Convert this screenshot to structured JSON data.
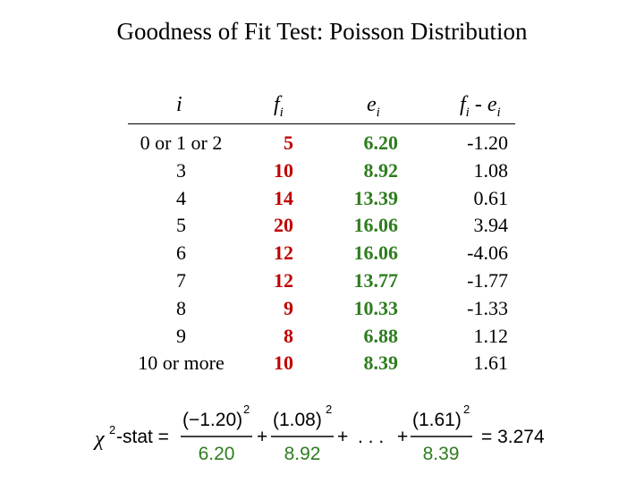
{
  "title": "Goodness of Fit Test:  Poisson Distribution",
  "headers": {
    "i": "i",
    "f": "f",
    "f_sub": "i",
    "e": "e",
    "e_sub": "i",
    "diff_f": "f",
    "diff_f_sub": "i",
    "diff_mid": " - e",
    "diff_e_sub": "i"
  },
  "rows": [
    {
      "i": "0 or 1 or 2",
      "f": "5",
      "e": "6.20",
      "diff": "-1.20"
    },
    {
      "i": "3",
      "f": "10",
      "e": "8.92",
      "diff": "1.08"
    },
    {
      "i": "4",
      "f": "14",
      "e": "13.39",
      "diff": "0.61"
    },
    {
      "i": "5",
      "f": "20",
      "e": "16.06",
      "diff": "3.94"
    },
    {
      "i": "6",
      "f": "12",
      "e": "16.06",
      "diff": "-4.06"
    },
    {
      "i": "7",
      "f": "12",
      "e": "13.77",
      "diff": "-1.77"
    },
    {
      "i": "8",
      "f": "9",
      "e": "10.33",
      "diff": "-1.33"
    },
    {
      "i": "9",
      "f": "8",
      "e": "6.88",
      "diff": "1.12"
    },
    {
      "i": "10 or more",
      "f": "10",
      "e": "8.39",
      "diff": "1.61"
    }
  ],
  "formula": {
    "chi": "χ",
    "sup2": "2",
    "stat_label": "-stat =",
    "term1_num": "(−1.20)",
    "term1_den": "6.20",
    "plus": "+",
    "term2_num": "(1.08)",
    "term2_den": "8.92",
    "ellipsis": ". . .",
    "term3_num": "(1.61)",
    "term3_den": "8.39",
    "result": "= 3.274"
  },
  "colors": {
    "observed": "#c00000",
    "expected": "#2e7d1e",
    "text": "#000000"
  }
}
